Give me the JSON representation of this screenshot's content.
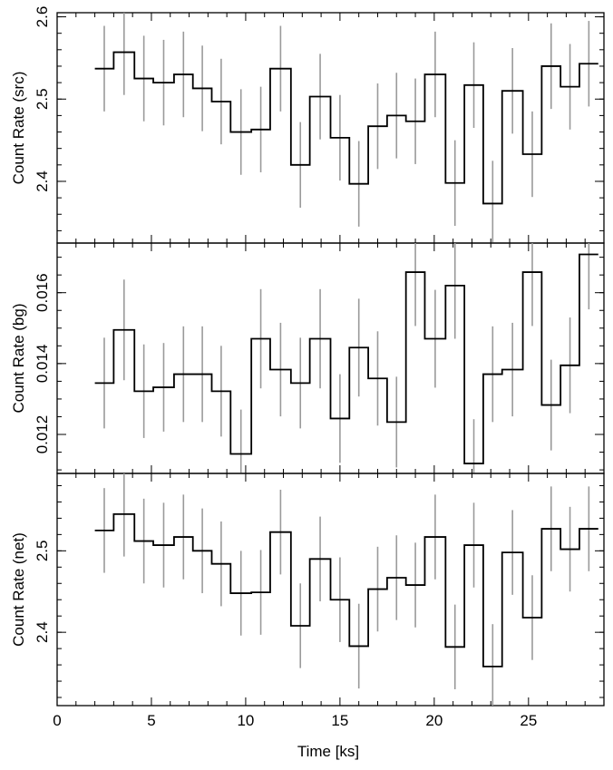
{
  "chart_data": {
    "type": "line",
    "style": "step",
    "shared_x": {
      "label": "Time [ks]",
      "range": [
        0,
        29
      ],
      "ticks": [
        0,
        5,
        10,
        15,
        20,
        25
      ],
      "tick_labels": [
        "0",
        "5",
        "10",
        "15",
        "20",
        "25"
      ],
      "bin_edges": [
        2.0,
        3.0,
        4.1,
        5.1,
        6.2,
        7.2,
        8.2,
        9.2,
        10.3,
        11.3,
        12.4,
        13.4,
        14.5,
        15.5,
        16.5,
        17.5,
        18.5,
        19.5,
        20.6,
        21.6,
        22.6,
        23.6,
        24.7,
        25.7,
        26.7,
        27.7,
        28.7
      ],
      "bin_centers": [
        2.5,
        3.55,
        4.6,
        5.65,
        6.7,
        7.7,
        8.7,
        9.75,
        10.8,
        11.85,
        12.9,
        13.95,
        15.0,
        16.0,
        17.0,
        18.0,
        19.0,
        20.05,
        21.1,
        22.1,
        23.1,
        24.15,
        25.2,
        26.2,
        27.2,
        28.2
      ]
    },
    "panels": [
      {
        "ylabel": "Count Rate (src)",
        "ylim": [
          2.325,
          2.605
        ],
        "yticks": [
          2.4,
          2.5,
          2.6
        ],
        "ytick_labels": [
          "2.4",
          "2.5",
          "2.6"
        ],
        "ytick_minor_step": 0.02,
        "values": [
          2.537,
          2.557,
          2.525,
          2.52,
          2.53,
          2.513,
          2.497,
          2.46,
          2.463,
          2.537,
          2.42,
          2.503,
          2.453,
          2.397,
          2.467,
          2.48,
          2.473,
          2.53,
          2.398,
          2.517,
          2.373,
          2.51,
          2.433,
          2.54,
          2.515,
          2.543
        ],
        "errors": [
          0.052,
          0.052,
          0.052,
          0.052,
          0.052,
          0.052,
          0.052,
          0.052,
          0.052,
          0.052,
          0.052,
          0.052,
          0.052,
          0.052,
          0.052,
          0.052,
          0.052,
          0.052,
          0.052,
          0.052,
          0.052,
          0.052,
          0.052,
          0.052,
          0.052,
          0.052
        ]
      },
      {
        "ylabel": "Count Rate (bg)",
        "ylim": [
          0.0109,
          0.0174
        ],
        "yticks": [
          0.012,
          0.014,
          0.016
        ],
        "ytick_labels": [
          "0.012",
          "0.014",
          "0.016"
        ],
        "ytick_minor_step": 0.0005,
        "values": [
          0.01345,
          0.01495,
          0.01322,
          0.01333,
          0.0137,
          0.0137,
          0.01322,
          0.01145,
          0.0147,
          0.01383,
          0.01345,
          0.0147,
          0.01245,
          0.01445,
          0.01358,
          0.01235,
          0.01658,
          0.0147,
          0.0162,
          0.01118,
          0.0137,
          0.01383,
          0.01658,
          0.01283,
          0.01395,
          0.01708
        ],
        "errors": [
          0.00128,
          0.00142,
          0.00132,
          0.00125,
          0.00135,
          0.00135,
          0.00128,
          0.00125,
          0.0014,
          0.00132,
          0.00128,
          0.0014,
          0.00125,
          0.00138,
          0.00133,
          0.00128,
          0.00152,
          0.00138,
          0.0015,
          0.00125,
          0.00135,
          0.00132,
          0.00152,
          0.00128,
          0.00135,
          0.00155
        ]
      },
      {
        "ylabel": "Count Rate (net)",
        "ylim": [
          2.31,
          2.595
        ],
        "yticks": [
          2.4,
          2.5
        ],
        "ytick_labels": [
          "2.4",
          "2.5"
        ],
        "ytick_minor_step": 0.02,
        "values": [
          2.525,
          2.545,
          2.512,
          2.507,
          2.517,
          2.5,
          2.484,
          2.448,
          2.449,
          2.523,
          2.408,
          2.49,
          2.44,
          2.383,
          2.453,
          2.467,
          2.458,
          2.517,
          2.382,
          2.507,
          2.358,
          2.498,
          2.418,
          2.527,
          2.502,
          2.527
        ],
        "errors": [
          0.052,
          0.052,
          0.052,
          0.052,
          0.052,
          0.052,
          0.052,
          0.052,
          0.052,
          0.052,
          0.052,
          0.052,
          0.052,
          0.052,
          0.052,
          0.052,
          0.052,
          0.052,
          0.052,
          0.052,
          0.052,
          0.052,
          0.052,
          0.052,
          0.052,
          0.052
        ]
      }
    ]
  }
}
